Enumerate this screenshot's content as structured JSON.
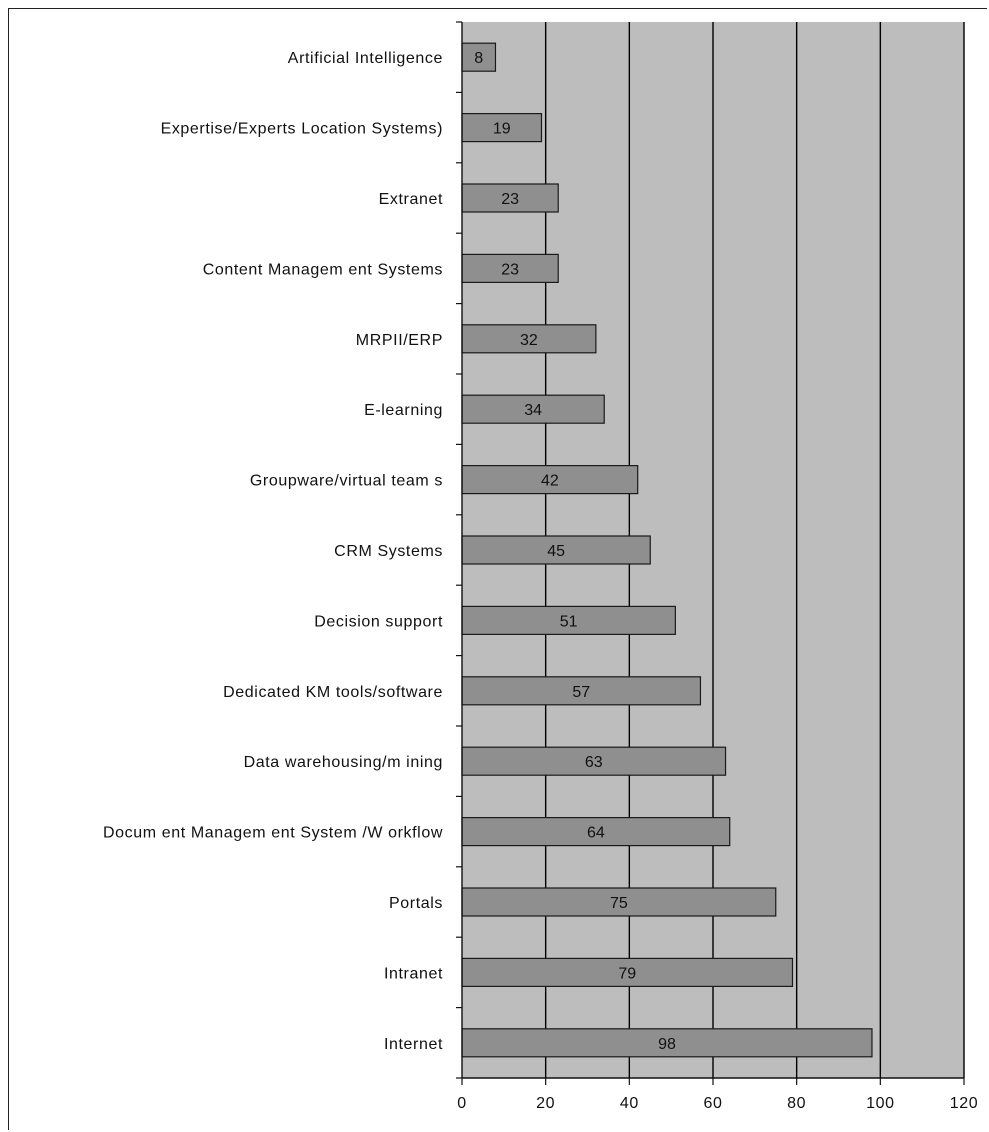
{
  "chart_data": {
    "type": "bar",
    "orientation": "horizontal",
    "categories": [
      "Artificial Intelligence",
      "Expertise/Experts Location Systems)",
      "Extranet",
      "Content Managem ent Systems",
      "MRPII/ERP",
      "E-learning",
      "Groupware/virtual team s",
      "CRM Systems",
      "Decision support",
      "Dedicated KM tools/software",
      "Data warehousing/m ining",
      "Docum ent Managem ent System /W orkflow",
      "Portals",
      "Intranet",
      "Internet"
    ],
    "values": [
      8,
      19,
      23,
      23,
      32,
      34,
      42,
      45,
      51,
      57,
      63,
      64,
      75,
      79,
      98
    ],
    "data_labels": [
      "8",
      "19",
      "23",
      "23",
      "32",
      "34",
      "42",
      "45",
      "51",
      "57",
      "63",
      "64",
      "75",
      "79",
      "98"
    ],
    "x_ticks": [
      "0",
      "20",
      "40",
      "60",
      "80",
      "100",
      "120"
    ],
    "xlim": [
      0,
      120
    ],
    "title": "",
    "xlabel": "",
    "ylabel": "",
    "grid": "vertical",
    "legend": "none",
    "colors": {
      "plot_background": "#bdbdbd",
      "bar_fill": "#8f8f8f",
      "bar_stroke": "#1a1a1a",
      "gridline": "#000000"
    }
  }
}
